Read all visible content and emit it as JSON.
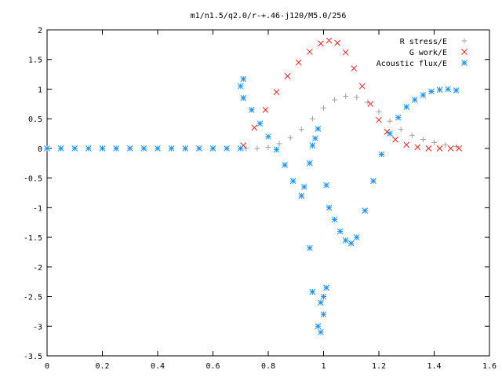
{
  "chart_data": {
    "type": "scatter",
    "title": "m1/n1.5/q2.0/r-+.46-j120/M5.0/256",
    "xlabel": "",
    "ylabel": "",
    "xlim": [
      0,
      1.6
    ],
    "ylim": [
      -3.5,
      2
    ],
    "grid": false,
    "legend_position": "top-right",
    "x_ticks": [
      "0",
      "0.2",
      "0.4",
      "0.6",
      "0.8",
      "1",
      "1.2",
      "1.4",
      "1.6"
    ],
    "y_ticks": [
      "2",
      "1.5",
      "1",
      "0.5",
      "0",
      "-0.5",
      "-1",
      "-1.5",
      "-2",
      "-2.5",
      "-3",
      "-3.5"
    ],
    "series": [
      {
        "name": "R stress/E",
        "marker": "+",
        "color": "#a0a0a0",
        "x": [
          0.72,
          0.76,
          0.8,
          0.84,
          0.88,
          0.92,
          0.96,
          1.0,
          1.04,
          1.08,
          1.12,
          1.16,
          1.2,
          1.24,
          1.28,
          1.32,
          1.36,
          1.4,
          1.44,
          1.48
        ],
        "y": [
          0.0,
          0.0,
          0.02,
          0.08,
          0.18,
          0.32,
          0.5,
          0.68,
          0.82,
          0.88,
          0.86,
          0.78,
          0.62,
          0.46,
          0.32,
          0.22,
          0.15,
          0.1,
          0.06,
          0.03
        ]
      },
      {
        "name": "G work/E",
        "marker": "x",
        "color": "#e0201e",
        "x": [
          0.71,
          0.75,
          0.79,
          0.83,
          0.87,
          0.91,
          0.95,
          0.99,
          1.02,
          1.05,
          1.08,
          1.11,
          1.14,
          1.17,
          1.2,
          1.23,
          1.26,
          1.3,
          1.34,
          1.38,
          1.42,
          1.46,
          1.49
        ],
        "y": [
          0.05,
          0.35,
          0.65,
          0.95,
          1.22,
          1.45,
          1.63,
          1.77,
          1.82,
          1.78,
          1.62,
          1.35,
          1.05,
          0.75,
          0.48,
          0.28,
          0.15,
          0.06,
          0.02,
          0.0,
          0.0,
          0.0,
          0.0
        ]
      },
      {
        "name": "Acoustic flux/E",
        "marker": "*",
        "color": "#1e90e8",
        "x": [
          0.0,
          0.05,
          0.1,
          0.15,
          0.2,
          0.25,
          0.3,
          0.35,
          0.4,
          0.45,
          0.5,
          0.55,
          0.6,
          0.65,
          0.7,
          0.71,
          0.74,
          0.77,
          0.8,
          0.83,
          0.86,
          0.89,
          0.92,
          0.95,
          0.96,
          0.98,
          0.99,
          1.0,
          1.01,
          1.02,
          1.04,
          1.06,
          1.08,
          1.1,
          1.12,
          1.15,
          1.18,
          1.21,
          1.24,
          1.27,
          1.3,
          1.33,
          1.36,
          1.39,
          1.42,
          1.45,
          1.48,
          0.7,
          0.71,
          0.93,
          0.95,
          0.96,
          0.97,
          0.98,
          0.99,
          1.0,
          1.01
        ],
        "y": [
          0.0,
          0.0,
          0.0,
          0.0,
          0.0,
          0.0,
          0.0,
          0.0,
          0.0,
          0.0,
          0.0,
          0.0,
          0.0,
          0.0,
          0.0,
          0.85,
          0.65,
          0.42,
          0.2,
          -0.02,
          -0.28,
          -0.55,
          -0.8,
          -1.68,
          -2.42,
          -3.0,
          -3.1,
          -2.8,
          -0.62,
          -1.0,
          -1.2,
          -1.4,
          -1.55,
          -1.6,
          -1.5,
          -1.05,
          -0.55,
          -0.1,
          0.25,
          0.52,
          0.7,
          0.82,
          0.9,
          0.96,
          0.99,
          1.0,
          0.98,
          1.05,
          1.17,
          -0.65,
          -0.25,
          0.05,
          0.17,
          0.33,
          -2.6,
          -2.5,
          -2.35
        ]
      }
    ]
  }
}
